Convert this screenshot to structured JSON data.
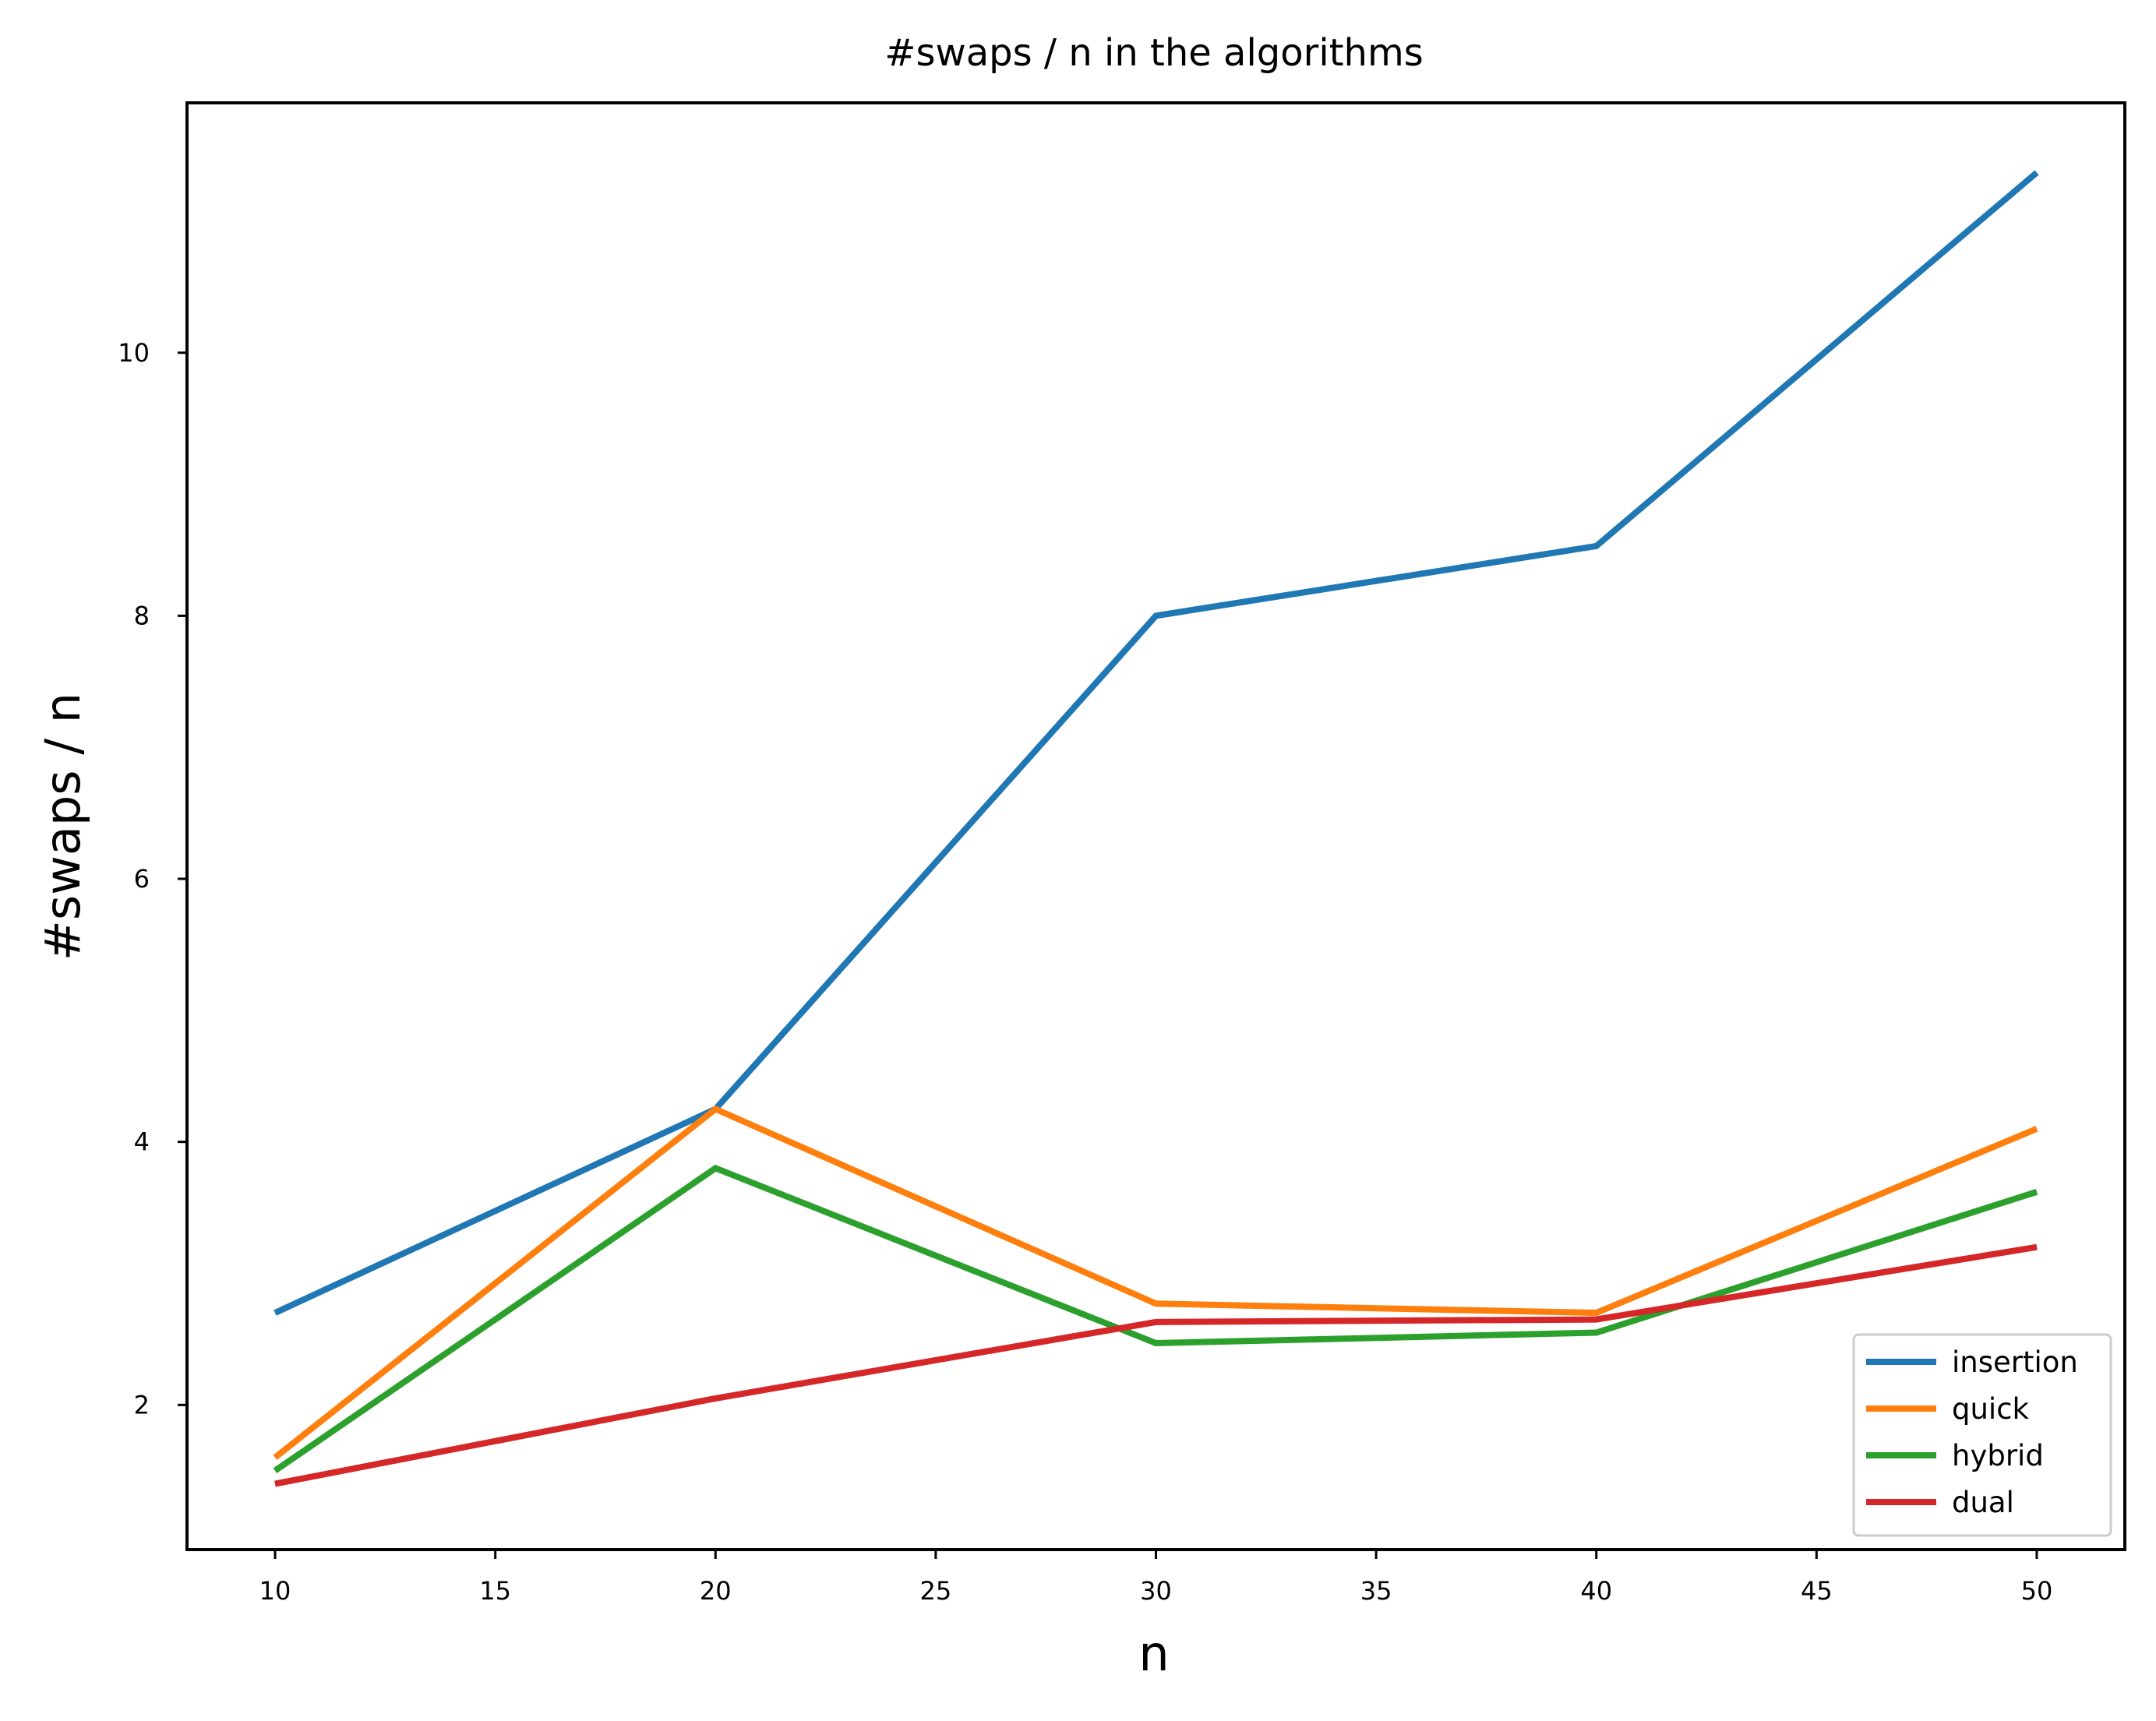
{
  "chart_data": {
    "type": "line",
    "title": "#swaps / n in the algorithms",
    "xlabel": "n",
    "ylabel": "#swaps / n",
    "x": [
      10,
      20,
      30,
      40,
      50
    ],
    "xlim": [
      8,
      52
    ],
    "ylim": [
      0.9,
      11.9
    ],
    "xticks": [
      10,
      15,
      20,
      25,
      30,
      35,
      40,
      45,
      50
    ],
    "yticks": [
      2,
      4,
      6,
      8,
      10
    ],
    "grid": false,
    "legend_position": "bottom-right",
    "series": [
      {
        "name": "insertion",
        "color": "#1f77b4",
        "values": [
          2.7,
          4.25,
          8.0,
          8.53,
          11.37
        ]
      },
      {
        "name": "quick",
        "color": "#ff7f0e",
        "values": [
          1.6,
          4.25,
          2.77,
          2.7,
          4.1
        ]
      },
      {
        "name": "hybrid",
        "color": "#2ca02c",
        "values": [
          1.5,
          3.8,
          2.47,
          2.55,
          3.62
        ]
      },
      {
        "name": "dual",
        "color": "#d62728",
        "values": [
          1.4,
          2.05,
          2.63,
          2.65,
          3.2
        ]
      }
    ]
  }
}
